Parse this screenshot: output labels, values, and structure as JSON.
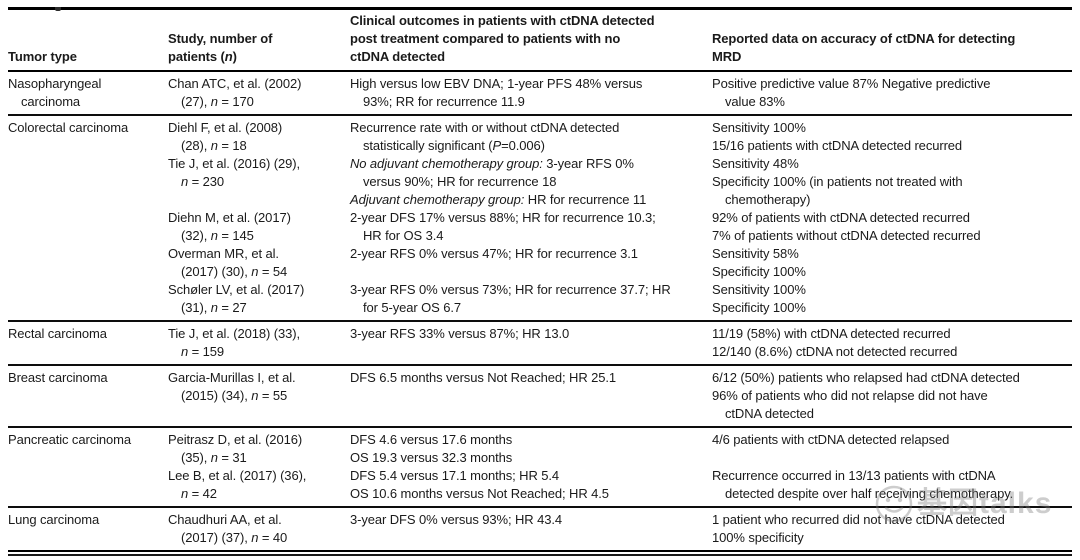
{
  "colors": {
    "text": "#1a1a1a",
    "rule": "#000000",
    "watermark_gray": "#7d7d7d"
  },
  "watermark": {
    "text": "基因talks",
    "logo": "chat-face-logo"
  },
  "table": {
    "columns": [
      {
        "id": "tumor-type",
        "label": [
          "Tumor type"
        ]
      },
      {
        "id": "study",
        "label": [
          "Study, number of",
          "\n",
          "patients (",
          {
            "i": "n"
          },
          ")"
        ]
      },
      {
        "id": "clinical-outcomes",
        "label": [
          "Clinical outcomes in patients with ctDNA detected",
          "\n",
          "post treatment compared to patients with no",
          "\n",
          "ctDNA detected"
        ]
      },
      {
        "id": "accuracy",
        "label": [
          "Reported data on accuracy of ctDNA for detecting",
          "\n",
          "MRD"
        ]
      }
    ],
    "groups": [
      {
        "tumor": [
          "Nasopharyngeal",
          "\n",
          "carcinoma"
        ],
        "studies": [
          {
            "study": [
              "Chan ATC, et al. (2002)",
              "\n",
              "(27), ",
              {
                "i": "n"
              },
              " = 170"
            ],
            "outcomes": [
              [
                "High versus low EBV DNA; 1-year PFS 48% versus",
                "\n",
                "93%; RR for recurrence 11.9"
              ]
            ],
            "accuracy": [
              [
                "Positive predictive value 87% Negative predictive",
                "\n",
                "value 83%"
              ]
            ]
          }
        ]
      },
      {
        "tumor": [
          "Colorectal carcinoma"
        ],
        "studies": [
          {
            "study": [
              "Diehl F, et al. (2008)",
              "\n",
              "(28), ",
              {
                "i": "n"
              },
              " = 18"
            ],
            "outcomes": [
              [
                "Recurrence rate with or without ctDNA detected",
                "\n",
                "statistically significant (",
                {
                  "i": "P"
                },
                "=0.006)"
              ]
            ],
            "accuracy": [
              [
                "Sensitivity 100%"
              ],
              [
                "15/16 patients with ctDNA detected recurred"
              ]
            ]
          },
          {
            "study": [
              "Tie J, et al. (2016) (29),",
              "\n",
              {
                "i": "n"
              },
              " = 230"
            ],
            "outcomes": [
              [
                {
                  "i": "No adjuvant chemotherapy group:"
                },
                " 3-year RFS 0%",
                "\n",
                "versus 90%; HR for recurrence 18"
              ],
              [
                {
                  "i": "Adjuvant chemotherapy group:"
                },
                " HR for recurrence 11"
              ]
            ],
            "accuracy": [
              [
                "Sensitivity 48%"
              ],
              [
                "Specificity 100% (in patients not treated with",
                "\n",
                "chemotherapy)"
              ]
            ]
          },
          {
            "study": [
              "Diehn M, et al. (2017)",
              "\n",
              "(32), ",
              {
                "i": "n"
              },
              " = 145"
            ],
            "outcomes": [
              [
                "2-year DFS 17% versus 88%; HR for recurrence 10.3;",
                "\n",
                "HR for OS 3.4"
              ]
            ],
            "accuracy": [
              [
                "92% of patients with ctDNA detected recurred"
              ],
              [
                "7% of patients without ctDNA detected recurred"
              ]
            ]
          },
          {
            "study": [
              "Overman MR, et al.",
              "\n",
              "(2017) (30), ",
              {
                "i": "n"
              },
              " = 54"
            ],
            "outcomes": [
              [
                "2-year RFS 0% versus 47%; HR for recurrence 3.1"
              ]
            ],
            "accuracy": [
              [
                "Sensitivity 58%"
              ],
              [
                "Specificity 100%"
              ]
            ]
          },
          {
            "study": [
              "Schøler LV, et al. (2017)",
              "\n",
              "(31), ",
              {
                "i": "n"
              },
              " = 27"
            ],
            "outcomes": [
              [
                "3-year RFS 0% versus 73%; HR for recurrence 37.7; HR",
                "\n",
                "for 5-year OS 6.7"
              ]
            ],
            "accuracy": [
              [
                "Sensitivity 100%"
              ],
              [
                "Specificity 100%"
              ]
            ]
          }
        ]
      },
      {
        "tumor": [
          "Rectal carcinoma"
        ],
        "studies": [
          {
            "study": [
              "Tie J, et al. (2018) (33),",
              "\n",
              {
                "i": "n"
              },
              " = 159"
            ],
            "outcomes": [
              [
                "3-year RFS 33% versus 87%; HR 13.0"
              ]
            ],
            "accuracy": [
              [
                "11/19 (58%) with ctDNA detected recurred"
              ],
              [
                "12/140 (8.6%) ctDNA not detected recurred"
              ]
            ]
          }
        ]
      },
      {
        "tumor": [
          "Breast carcinoma"
        ],
        "studies": [
          {
            "study": [
              "Garcia-Murillas I, et al.",
              "\n",
              "(2015) (34), ",
              {
                "i": "n"
              },
              " = 55"
            ],
            "outcomes": [
              [
                "DFS 6.5 months versus Not Reached; HR 25.1"
              ]
            ],
            "accuracy": [
              [
                "6/12 (50%) patients who relapsed had ctDNA detected"
              ],
              [
                "96% of patients who did not relapse did not have",
                "\n",
                "ctDNA detected"
              ]
            ]
          }
        ]
      },
      {
        "tumor": [
          "Pancreatic carcinoma"
        ],
        "studies": [
          {
            "study": [
              "Peitrasz D, et al. (2016)",
              "\n",
              "(35), ",
              {
                "i": "n"
              },
              " = 31"
            ],
            "outcomes": [
              [
                "DFS 4.6 versus 17.6 months"
              ],
              [
                "OS 19.3 versus 32.3 months"
              ]
            ],
            "accuracy": [
              [
                "4/6 patients with ctDNA detected relapsed"
              ]
            ]
          },
          {
            "study": [
              "Lee B, et al. (2017) (36),",
              "\n",
              {
                "i": "n"
              },
              " = 42"
            ],
            "outcomes": [
              [
                "DFS 5.4 versus 17.1 months; HR 5.4"
              ],
              [
                "OS 10.6 months versus Not Reached; HR 4.5"
              ]
            ],
            "accuracy": [
              [
                "Recurrence occurred in 13/13 patients with ctDNA",
                "\n",
                "detected despite over half receiving chemotherapy."
              ]
            ]
          }
        ]
      },
      {
        "tumor": [
          "Lung carcinoma"
        ],
        "studies": [
          {
            "study": [
              "Chaudhuri AA, et al.",
              "\n",
              "(2017) (37), ",
              {
                "i": "n"
              },
              " = 40"
            ],
            "outcomes": [
              [
                "3-year DFS 0% versus 93%; HR 43.4"
              ]
            ],
            "accuracy": [
              [
                "1 patient who recurred did not have ctDNA detected"
              ],
              [
                "100% specificity"
              ]
            ]
          }
        ]
      }
    ]
  }
}
